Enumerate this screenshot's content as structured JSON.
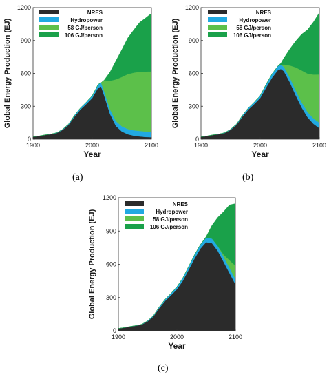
{
  "colors": {
    "nres": "#2b2b2b",
    "hydro": "#21a9e1",
    "g58": "#5cc04a",
    "g106": "#1aa14a"
  },
  "panels": [
    {
      "label": "(a)"
    },
    {
      "label": "(b)"
    },
    {
      "label": "(c)"
    }
  ],
  "chart_data": [
    {
      "type": "area",
      "panel": "(a)",
      "title": "",
      "xlabel": "Year",
      "ylabel": "Global Energy Production (EJ)",
      "xlim": [
        1900,
        2100
      ],
      "ylim": [
        0,
        1200
      ],
      "xticks": [
        1900,
        2000,
        2100
      ],
      "yticks": [
        0,
        300,
        600,
        900,
        1200
      ],
      "legend": "top-left",
      "grid": false,
      "x": [
        1900,
        1910,
        1920,
        1930,
        1940,
        1950,
        1960,
        1970,
        1980,
        1990,
        2000,
        2010,
        2015,
        2020,
        2030,
        2040,
        2050,
        2060,
        2070,
        2080,
        2090,
        2100
      ],
      "series": [
        {
          "name": "NRES",
          "values": [
            21,
            28,
            38,
            45,
            56,
            85,
            130,
            205,
            270,
            320,
            375,
            470,
            480,
            400,
            230,
            120,
            70,
            45,
            32,
            25,
            20,
            18
          ]
        },
        {
          "name": "Hydropower",
          "values": [
            0,
            1,
            1,
            2,
            3,
            5,
            8,
            12,
            15,
            18,
            22,
            30,
            35,
            38,
            42,
            45,
            47,
            48,
            49,
            50,
            50,
            50
          ]
        },
        {
          "name": "58 GJ/person",
          "values": [
            0,
            0,
            0,
            0,
            0,
            0,
            0,
            0,
            0,
            0,
            0,
            0,
            0,
            100,
            260,
            380,
            450,
            500,
            525,
            540,
            545,
            550
          ]
        },
        {
          "name": "106 GJ/person",
          "values": [
            0,
            0,
            0,
            0,
            0,
            0,
            0,
            0,
            0,
            0,
            0,
            0,
            0,
            0,
            80,
            170,
            250,
            330,
            390,
            450,
            490,
            530
          ]
        }
      ]
    },
    {
      "type": "area",
      "panel": "(b)",
      "title": "",
      "xlabel": "Year",
      "ylabel": "Global Energy Production (EJ)",
      "xlim": [
        1900,
        2100
      ],
      "ylim": [
        0,
        1200
      ],
      "xticks": [
        1900,
        2000,
        2100
      ],
      "yticks": [
        0,
        300,
        600,
        900,
        1200
      ],
      "legend": "top-left",
      "grid": false,
      "x": [
        1900,
        1910,
        1920,
        1930,
        1940,
        1950,
        1960,
        1970,
        1980,
        1990,
        2000,
        2010,
        2020,
        2030,
        2035,
        2040,
        2050,
        2060,
        2070,
        2080,
        2090,
        2100
      ],
      "series": [
        {
          "name": "NRES",
          "values": [
            21,
            28,
            38,
            45,
            56,
            85,
            130,
            205,
            270,
            320,
            375,
            470,
            560,
            630,
            640,
            620,
            520,
            400,
            290,
            200,
            140,
            100
          ]
        },
        {
          "name": "Hydropower",
          "values": [
            0,
            1,
            1,
            2,
            3,
            5,
            8,
            12,
            15,
            18,
            22,
            30,
            35,
            38,
            38,
            40,
            42,
            45,
            47,
            48,
            49,
            50
          ]
        },
        {
          "name": "58 GJ/person",
          "values": [
            0,
            0,
            0,
            0,
            0,
            0,
            0,
            0,
            0,
            0,
            0,
            0,
            0,
            0,
            0,
            20,
            110,
            210,
            290,
            350,
            400,
            440
          ]
        },
        {
          "name": "106 GJ/person",
          "values": [
            0,
            0,
            0,
            0,
            0,
            0,
            0,
            0,
            0,
            0,
            0,
            0,
            0,
            0,
            15,
            60,
            150,
            240,
            330,
            400,
            480,
            565
          ]
        }
      ]
    },
    {
      "type": "area",
      "panel": "(c)",
      "title": "",
      "xlabel": "Year",
      "ylabel": "Global Energy Production (EJ)",
      "xlim": [
        1900,
        2100
      ],
      "ylim": [
        0,
        1200
      ],
      "xticks": [
        1900,
        2000,
        2100
      ],
      "yticks": [
        0,
        300,
        600,
        900,
        1200
      ],
      "legend": "top-left",
      "grid": false,
      "x": [
        1900,
        1910,
        1920,
        1930,
        1940,
        1950,
        1960,
        1970,
        1980,
        1990,
        2000,
        2010,
        2020,
        2030,
        2040,
        2050,
        2060,
        2070,
        2080,
        2090,
        2100
      ],
      "series": [
        {
          "name": "NRES",
          "values": [
            21,
            28,
            38,
            45,
            56,
            85,
            130,
            205,
            270,
            320,
            375,
            450,
            550,
            650,
            740,
            800,
            790,
            720,
            620,
            520,
            420
          ]
        },
        {
          "name": "Hydropower",
          "values": [
            0,
            1,
            1,
            2,
            3,
            5,
            8,
            12,
            15,
            18,
            22,
            25,
            30,
            34,
            37,
            40,
            42,
            44,
            46,
            46,
            47
          ]
        },
        {
          "name": "58 GJ/person",
          "values": [
            0,
            0,
            0,
            0,
            0,
            0,
            0,
            0,
            0,
            0,
            0,
            0,
            0,
            0,
            0,
            0,
            0,
            0,
            20,
            70,
            120
          ]
        },
        {
          "name": "106 GJ/person",
          "values": [
            0,
            0,
            0,
            0,
            0,
            0,
            0,
            0,
            0,
            0,
            0,
            0,
            0,
            0,
            0,
            10,
            120,
            260,
            390,
            500,
            560
          ]
        }
      ]
    }
  ]
}
